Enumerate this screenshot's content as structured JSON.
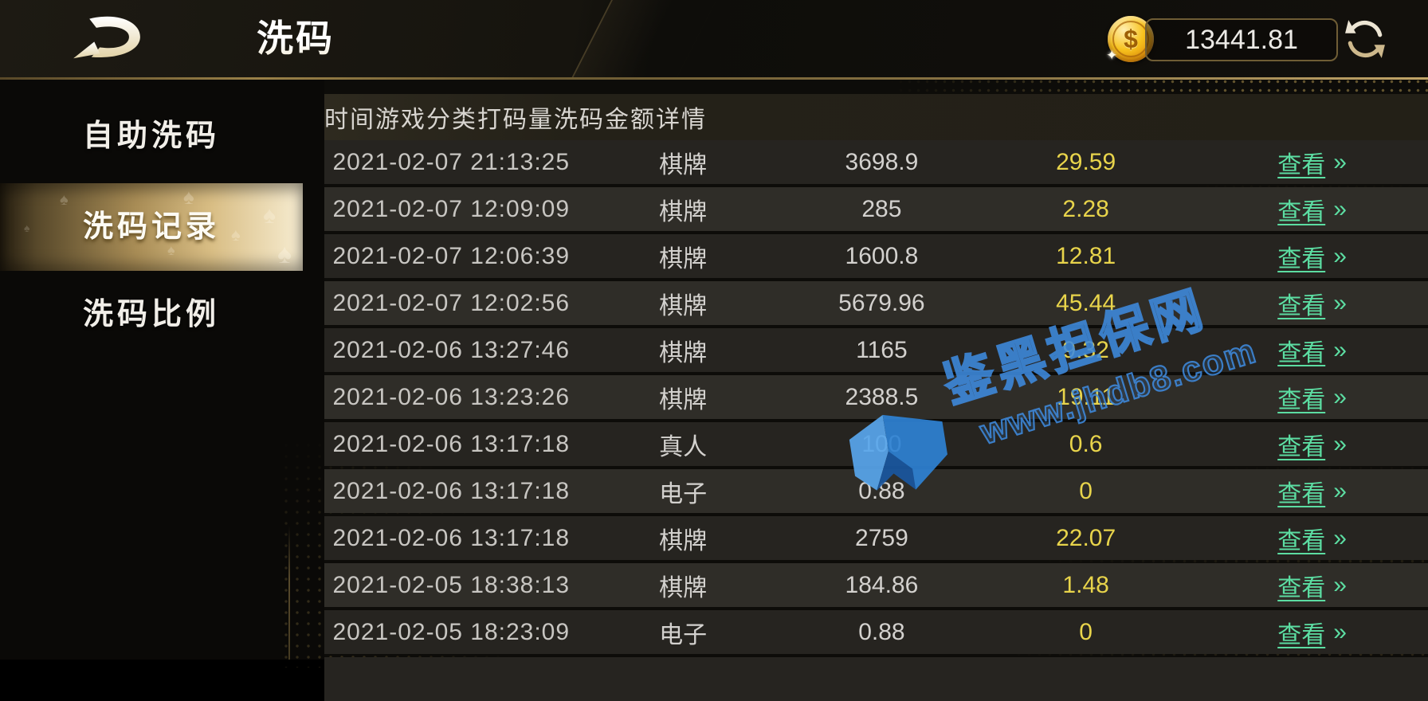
{
  "header": {
    "title": "洗码",
    "balance": "13441.81",
    "coin_symbol": "$"
  },
  "sidebar": {
    "items": [
      {
        "label": "自助洗码",
        "active": false
      },
      {
        "label": "洗码记录",
        "active": true
      },
      {
        "label": "洗码比例",
        "active": false
      }
    ]
  },
  "table": {
    "columns": [
      "时间",
      "游戏分类",
      "打码量",
      "洗码金额",
      "详情"
    ],
    "view_label": "查看",
    "view_arrow": "»",
    "rows": [
      {
        "time": "2021-02-07 21:13:25",
        "category": "棋牌",
        "wager": "3698.9",
        "rebate": "29.59"
      },
      {
        "time": "2021-02-07 12:09:09",
        "category": "棋牌",
        "wager": "285",
        "rebate": "2.28"
      },
      {
        "time": "2021-02-07 12:06:39",
        "category": "棋牌",
        "wager": "1600.8",
        "rebate": "12.81"
      },
      {
        "time": "2021-02-07 12:02:56",
        "category": "棋牌",
        "wager": "5679.96",
        "rebate": "45.44"
      },
      {
        "time": "2021-02-06 13:27:46",
        "category": "棋牌",
        "wager": "1165",
        "rebate": "9.32"
      },
      {
        "time": "2021-02-06 13:23:26",
        "category": "棋牌",
        "wager": "2388.5",
        "rebate": "19.11"
      },
      {
        "time": "2021-02-06 13:17:18",
        "category": "真人",
        "wager": "100",
        "rebate": "0.6"
      },
      {
        "time": "2021-02-06 13:17:18",
        "category": "电子",
        "wager": "0.88",
        "rebate": "0"
      },
      {
        "time": "2021-02-06 13:17:18",
        "category": "棋牌",
        "wager": "2759",
        "rebate": "22.07"
      },
      {
        "time": "2021-02-05 18:38:13",
        "category": "棋牌",
        "wager": "184.86",
        "rebate": "1.48"
      },
      {
        "time": "2021-02-05 18:23:09",
        "category": "电子",
        "wager": "0.88",
        "rebate": "0"
      }
    ]
  },
  "watermark": {
    "line1": "鉴黑担保网",
    "line2": "www.jhdb8.com"
  },
  "colors": {
    "accent_gold": "#c9ad6d",
    "amount_yellow": "#e8d44b",
    "link_green": "#5cdda2",
    "watermark_blue": "#3e8ade",
    "row_dark": "#262420",
    "row_light": "#2f2d28"
  }
}
